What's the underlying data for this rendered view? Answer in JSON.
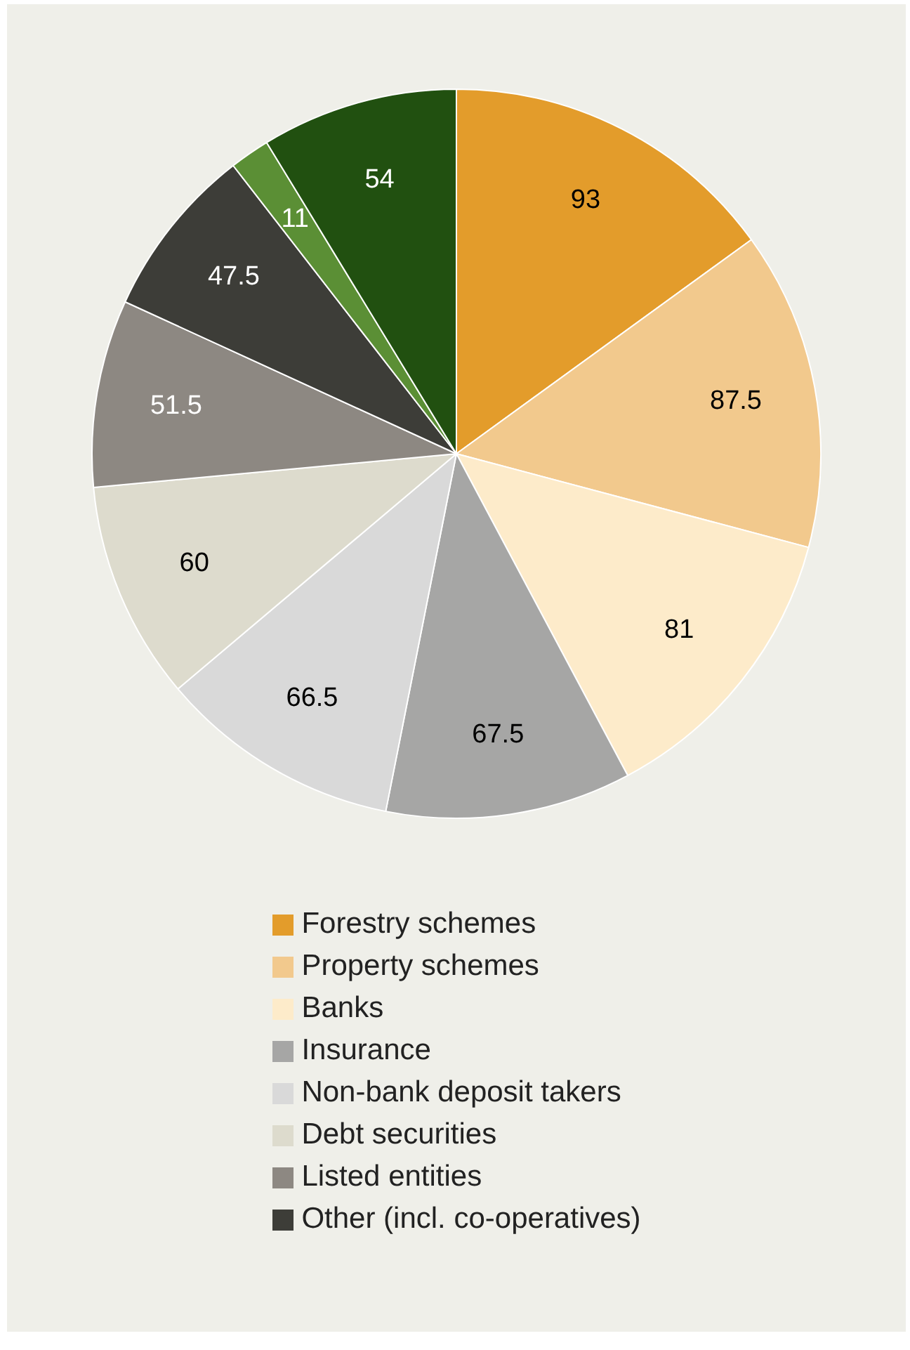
{
  "chart_data": {
    "type": "pie",
    "categories": [
      "Forestry schemes",
      "Property schemes",
      "Banks",
      "Insurance",
      "Non-bank deposit takers",
      "Debt securities",
      "Listed entities",
      "Other (incl. co-operatives)",
      null,
      null
    ],
    "values": [
      93,
      87.5,
      81,
      67.5,
      66.5,
      60,
      51.5,
      47.5,
      11,
      54
    ],
    "colors": [
      "#e39c2b",
      "#f2c98d",
      "#fdebca",
      "#a6a6a5",
      "#d9d9d9",
      "#dddbcd",
      "#8d8882",
      "#3d3d38",
      "#5b8f35",
      "#215010"
    ],
    "data_labels": true,
    "legend": "bottom"
  }
}
